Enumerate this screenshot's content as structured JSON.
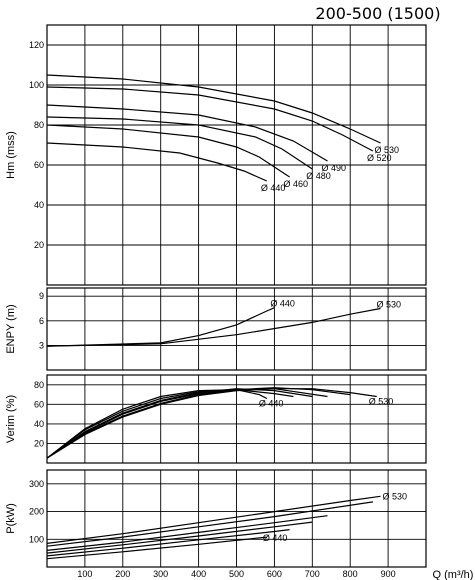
{
  "title": "200-500 (1500)",
  "xlabel": "Q (m³/h)",
  "x_ticks": [
    "100",
    "200",
    "300",
    "400",
    "500",
    "600",
    "700",
    "800",
    "900"
  ],
  "chart_data": [
    {
      "type": "line",
      "ylabel": "Hm (mss)",
      "xlim": [
        0,
        1000
      ],
      "ylim": [
        0,
        130
      ],
      "y_ticks": [
        "20",
        "40",
        "60",
        "80",
        "100",
        "120"
      ],
      "grid": true,
      "series": [
        {
          "name": "Ø 530",
          "x": [
            0,
            200,
            400,
            600,
            700,
            800,
            880
          ],
          "y": [
            105,
            103,
            99,
            92,
            86,
            78,
            71
          ]
        },
        {
          "name": "Ø 520",
          "x": [
            0,
            200,
            400,
            600,
            700,
            780,
            860
          ],
          "y": [
            99,
            98,
            95,
            88,
            82,
            75,
            67
          ]
        },
        {
          "name": "Ø 490",
          "x": [
            0,
            200,
            400,
            550,
            650,
            740
          ],
          "y": [
            90,
            88,
            85,
            79,
            72,
            62
          ]
        },
        {
          "name": "Ø 480",
          "x": [
            0,
            200,
            400,
            550,
            620,
            700
          ],
          "y": [
            84,
            83,
            80,
            74,
            68,
            58
          ]
        },
        {
          "name": "Ø 460",
          "x": [
            0,
            200,
            400,
            500,
            560,
            640
          ],
          "y": [
            80,
            78,
            74,
            69,
            64,
            54
          ]
        },
        {
          "name": "Ø 440",
          "x": [
            0,
            200,
            350,
            450,
            520,
            580
          ],
          "y": [
            71,
            69,
            66,
            61,
            57,
            52
          ]
        }
      ]
    },
    {
      "type": "line",
      "ylabel": "ENPY (m)",
      "xlim": [
        0,
        1000
      ],
      "ylim": [
        0,
        10
      ],
      "y_ticks": [
        "3",
        "6",
        "9"
      ],
      "grid": true,
      "series": [
        {
          "name": "Ø 440",
          "x": [
            0,
            300,
            400,
            500,
            580,
            600
          ],
          "y": [
            2.9,
            3.3,
            4.2,
            5.5,
            7.2,
            7.6
          ]
        },
        {
          "name": "Ø 530",
          "x": [
            0,
            300,
            500,
            700,
            800,
            880
          ],
          "y": [
            2.9,
            3.2,
            4.3,
            5.8,
            6.8,
            7.5
          ]
        }
      ]
    },
    {
      "type": "line",
      "ylabel": "Verim (%)",
      "xlim": [
        0,
        1000
      ],
      "ylim": [
        0,
        90
      ],
      "y_ticks": [
        "20",
        "40",
        "60",
        "80"
      ],
      "grid": true,
      "series": [
        {
          "name": "Ø 440",
          "x": [
            0,
            100,
            200,
            300,
            400,
            500,
            560,
            580
          ],
          "y": [
            5,
            35,
            55,
            68,
            74,
            75,
            70,
            66
          ]
        },
        {
          "name": "Ø 460",
          "x": [
            0,
            100,
            200,
            300,
            400,
            500,
            600,
            650
          ],
          "y": [
            5,
            34,
            53,
            66,
            73,
            75,
            71,
            68
          ]
        },
        {
          "name": "Ø 480",
          "x": [
            0,
            100,
            200,
            300,
            400,
            500,
            600,
            700
          ],
          "y": [
            5,
            32,
            51,
            64,
            72,
            76,
            74,
            68
          ]
        },
        {
          "name": "Ø 490",
          "x": [
            0,
            100,
            200,
            300,
            400,
            500,
            600,
            740
          ],
          "y": [
            5,
            31,
            50,
            63,
            71,
            75,
            76,
            68
          ]
        },
        {
          "name": "Ø 520",
          "x": [
            0,
            100,
            200,
            300,
            400,
            500,
            600,
            700,
            800
          ],
          "y": [
            5,
            30,
            48,
            61,
            70,
            75,
            77,
            75,
            70
          ]
        },
        {
          "name": "Ø 530",
          "x": [
            0,
            100,
            200,
            300,
            400,
            500,
            600,
            700,
            800,
            870
          ],
          "y": [
            5,
            29,
            47,
            60,
            69,
            74,
            76,
            76,
            72,
            68
          ]
        }
      ]
    },
    {
      "type": "line",
      "ylabel": "P(kW)",
      "xlim": [
        0,
        1000
      ],
      "ylim": [
        0,
        350
      ],
      "y_ticks": [
        "100",
        "200",
        "300"
      ],
      "grid": true,
      "series": [
        {
          "name": "Ø 530",
          "x": [
            0,
            200,
            400,
            600,
            800,
            880
          ],
          "y": [
            85,
            120,
            160,
            200,
            240,
            255
          ]
        },
        {
          "name": "Ø 520",
          "x": [
            0,
            200,
            400,
            600,
            860
          ],
          "y": [
            75,
            108,
            145,
            182,
            235
          ]
        },
        {
          "name": "Ø 490",
          "x": [
            0,
            200,
            400,
            600,
            740
          ],
          "y": [
            60,
            90,
            125,
            160,
            185
          ]
        },
        {
          "name": "Ø 480",
          "x": [
            0,
            200,
            400,
            600,
            700
          ],
          "y": [
            50,
            80,
            112,
            145,
            162
          ]
        },
        {
          "name": "Ø 460",
          "x": [
            0,
            200,
            400,
            600,
            640
          ],
          "y": [
            40,
            68,
            98,
            128,
            135
          ]
        },
        {
          "name": "Ø 440",
          "x": [
            0,
            200,
            400,
            580
          ],
          "y": [
            30,
            55,
            82,
            108
          ]
        }
      ]
    }
  ]
}
